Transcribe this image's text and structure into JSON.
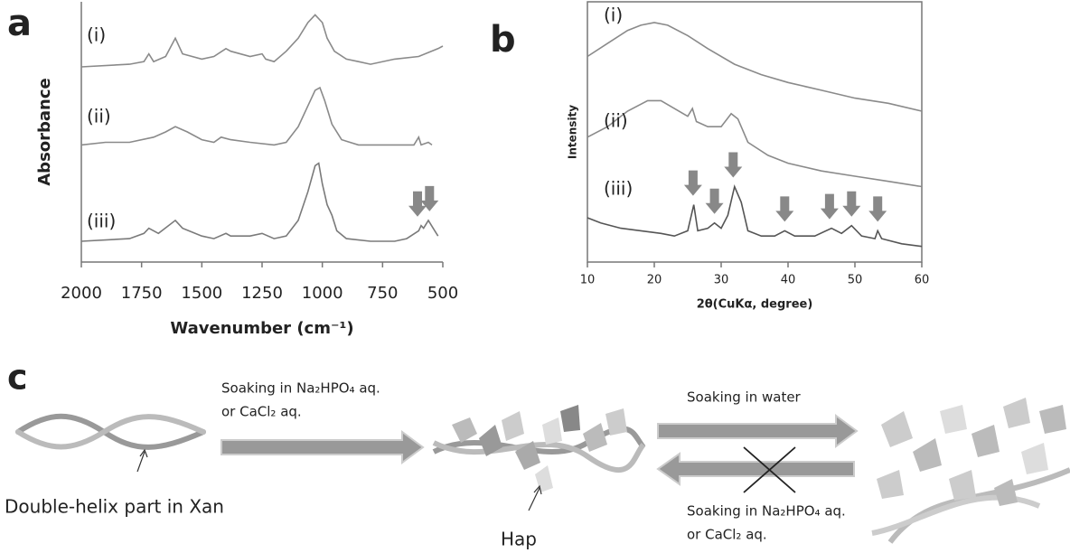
{
  "chart_data": [
    {
      "type": "line",
      "panel_label": "a",
      "ylabel": "Absorbance",
      "xlabel": "Wavenumber (cm⁻¹)",
      "xlim": [
        2000,
        500
      ],
      "xticks": [
        2000,
        1750,
        1500,
        1250,
        1000,
        750,
        500
      ],
      "ylim": [
        0,
        100
      ],
      "markers_x": [
        605,
        555
      ],
      "series": [
        {
          "name": "(i)",
          "color": "#8a8a8a",
          "x": [
            2000,
            1800,
            1740,
            1720,
            1700,
            1650,
            1610,
            1580,
            1500,
            1450,
            1400,
            1380,
            1300,
            1250,
            1235,
            1200,
            1150,
            1100,
            1060,
            1030,
            1000,
            980,
            950,
            900,
            850,
            800,
            700,
            600,
            520,
            500
          ],
          "values": [
            75,
            76,
            77,
            80,
            77,
            79,
            86,
            80,
            78,
            79,
            82,
            81,
            79,
            80,
            78,
            77,
            81,
            86,
            92,
            95,
            92,
            86,
            81,
            78,
            77,
            76,
            78,
            79,
            82,
            83
          ]
        },
        {
          "name": "(ii)",
          "color": "#8a8a8a",
          "x": [
            2000,
            1900,
            1800,
            1700,
            1650,
            1610,
            1560,
            1500,
            1450,
            1420,
            1380,
            1300,
            1200,
            1150,
            1100,
            1060,
            1030,
            1010,
            990,
            960,
            920,
            850,
            700,
            620,
            600,
            590,
            560,
            545
          ],
          "values": [
            45,
            46,
            46,
            48,
            50,
            52,
            50,
            47,
            46,
            48,
            47,
            46,
            45,
            46,
            52,
            60,
            66,
            67,
            62,
            53,
            47,
            45,
            45,
            45,
            48,
            45,
            46,
            45
          ]
        },
        {
          "name": "(iii)",
          "color": "#7a7a7a",
          "x": [
            2000,
            1800,
            1740,
            1720,
            1680,
            1610,
            1580,
            1500,
            1450,
            1400,
            1380,
            1300,
            1250,
            1200,
            1150,
            1100,
            1060,
            1030,
            1015,
            1000,
            980,
            960,
            940,
            900,
            800,
            700,
            650,
            600,
            590,
            580,
            560,
            540,
            520
          ],
          "values": [
            8,
            9,
            11,
            13,
            11,
            16,
            13,
            10,
            9,
            11,
            10,
            10,
            11,
            9,
            10,
            16,
            27,
            37,
            38,
            30,
            22,
            18,
            12,
            9,
            8,
            8,
            9,
            12,
            14,
            13,
            16,
            13,
            10
          ]
        }
      ]
    },
    {
      "type": "line",
      "panel_label": "b",
      "ylabel": "Intensity",
      "xlabel": "2θ(CuKα, degree)",
      "xlim": [
        10,
        60
      ],
      "xticks": [
        10,
        20,
        30,
        40,
        50,
        60
      ],
      "ylim": [
        0,
        100
      ],
      "markers_x": [
        25.8,
        29,
        31.8,
        39.5,
        46.2,
        49.5,
        53.4
      ],
      "series": [
        {
          "name": "(i)",
          "color": "#8a8a8a",
          "x": [
            10,
            13,
            16,
            18,
            20,
            22,
            25,
            28,
            32,
            36,
            40,
            45,
            50,
            55,
            60
          ],
          "values": [
            79,
            84,
            89,
            91,
            92,
            91,
            87,
            82,
            76,
            72,
            69,
            66,
            63,
            61,
            58
          ]
        },
        {
          "name": "(ii)",
          "color": "#8a8a8a",
          "x": [
            10,
            13,
            16,
            19,
            21,
            23,
            25,
            25.7,
            26.3,
            28,
            30,
            31.5,
            32.5,
            34,
            37,
            40,
            45,
            50,
            55,
            60
          ],
          "values": [
            48,
            52,
            58,
            62,
            62,
            59,
            56,
            59,
            54,
            52,
            52,
            57,
            55,
            46,
            41,
            38,
            35,
            33,
            31,
            29
          ]
        },
        {
          "name": "(iii)",
          "color": "#555555",
          "x": [
            10,
            12,
            15,
            18,
            21,
            23,
            25,
            25.9,
            26.5,
            28,
            29,
            30,
            31,
            32,
            33,
            34,
            36,
            38,
            39.5,
            41,
            44,
            46.5,
            48,
            49.5,
            51,
            53,
            53.4,
            54,
            57,
            60
          ],
          "values": [
            17,
            15,
            13,
            12,
            11,
            10,
            12,
            22,
            12,
            13,
            15,
            13,
            18,
            29,
            23,
            12,
            10,
            10,
            12,
            10,
            10,
            13,
            11,
            14,
            10,
            9,
            12,
            9,
            7,
            6
          ]
        }
      ]
    }
  ],
  "diagram": {
    "panel_label": "c",
    "step1": [
      "Soaking in Na₂HPO₄ aq.",
      "or CaCl₂ aq."
    ],
    "step2": "Soaking in water",
    "step3": [
      "Soaking in Na₂HPO₄ aq.",
      "or CaCl₂ aq."
    ],
    "helix_label": "Double-helix part in Xan",
    "hap_label": "Hap"
  }
}
